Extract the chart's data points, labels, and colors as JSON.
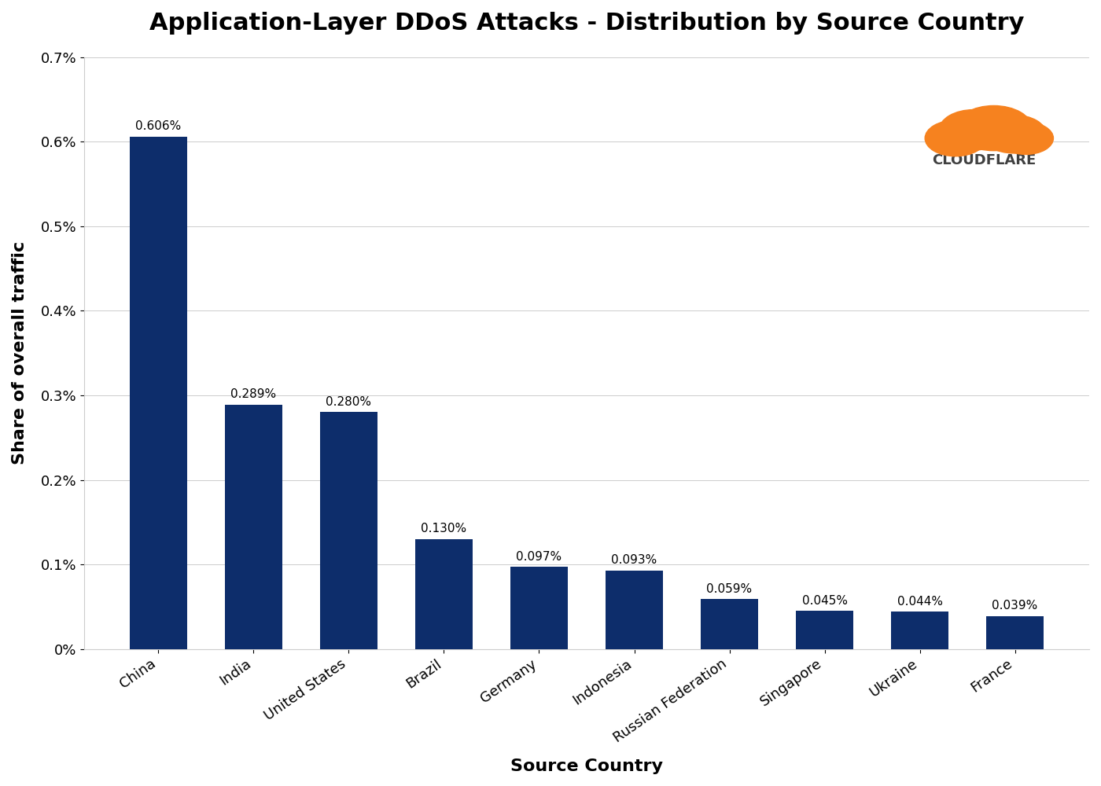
{
  "title": "Application-Layer DDoS Attacks - Distribution by Source Country",
  "xlabel": "Source Country",
  "ylabel": "Share of overall traffic",
  "categories": [
    "China",
    "India",
    "United States",
    "Brazil",
    "Germany",
    "Indonesia",
    "Russian Federation",
    "Singapore",
    "Ukraine",
    "France"
  ],
  "values": [
    0.606,
    0.289,
    0.28,
    0.13,
    0.097,
    0.093,
    0.059,
    0.045,
    0.044,
    0.039
  ],
  "labels": [
    "0.606%",
    "0.289%",
    "0.280%",
    "0.130%",
    "0.097%",
    "0.093%",
    "0.059%",
    "0.045%",
    "0.044%",
    "0.039%"
  ],
  "bar_color": "#0d2d6b",
  "background_color": "#ffffff",
  "ylim": [
    0,
    0.7
  ],
  "yticks": [
    0.0,
    0.1,
    0.2,
    0.3,
    0.4,
    0.5,
    0.6,
    0.7
  ],
  "ytick_labels": [
    "0%",
    "0.1%",
    "0.2%",
    "0.3%",
    "0.4%",
    "0.5%",
    "0.6%",
    "0.7%"
  ],
  "title_fontsize": 22,
  "axis_label_fontsize": 16,
  "tick_fontsize": 13,
  "bar_label_fontsize": 11,
  "cloudflare_text": "CLOUDFLARE",
  "cloudflare_color": "#404040",
  "cloud_orange": "#f6821f"
}
